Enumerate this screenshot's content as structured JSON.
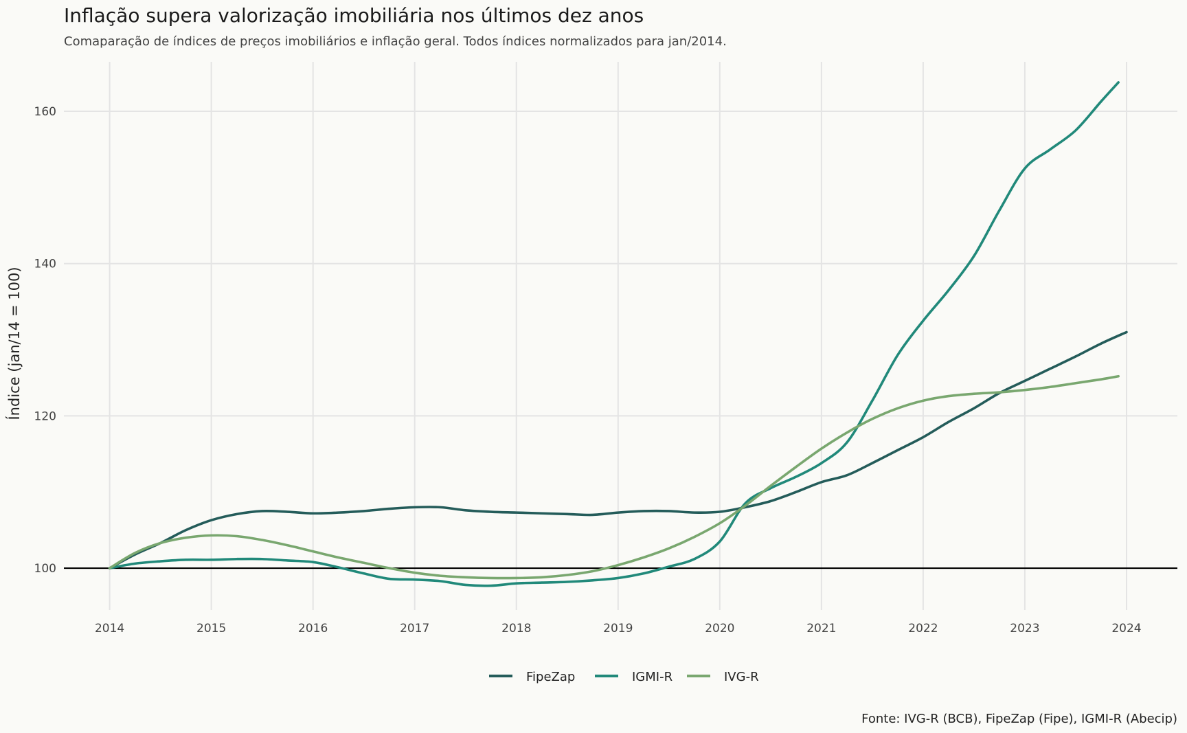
{
  "chart_data": {
    "type": "line",
    "title": "Inflação supera valorização imobiliária nos últimos dez anos",
    "subtitle": "Comaparação de índices de preços imobiliários e inflação geral. Todos índices normalizados para jan/2014.",
    "caption": "Fonte: IVG-R (BCB), FipeZap (Fipe), IGMI-R (Abecip)",
    "xlabel": "",
    "ylabel": "Índice (jan/14 = 100)",
    "xlim": [
      2013.55,
      2024.5
    ],
    "ylim": [
      94.5,
      166.5
    ],
    "x_ticks": [
      2014,
      2015,
      2016,
      2017,
      2018,
      2019,
      2020,
      2021,
      2022,
      2023,
      2024
    ],
    "x_tick_labels": [
      "2014",
      "2015",
      "2016",
      "2017",
      "2018",
      "2019",
      "2020",
      "2021",
      "2022",
      "2023",
      "2024"
    ],
    "y_ticks": [
      100,
      120,
      140,
      160
    ],
    "y_tick_labels": [
      "100",
      "120",
      "140",
      "160"
    ],
    "reference_line": 100,
    "grid": true,
    "legend_position": "bottom",
    "series": [
      {
        "name": "FipeZap",
        "color": "#245c5a",
        "points": [
          [
            2014.0,
            100.0
          ],
          [
            2014.25,
            101.8
          ],
          [
            2014.5,
            103.3
          ],
          [
            2014.75,
            105.0
          ],
          [
            2015.0,
            106.3
          ],
          [
            2015.25,
            107.1
          ],
          [
            2015.5,
            107.5
          ],
          [
            2015.75,
            107.4
          ],
          [
            2016.0,
            107.2
          ],
          [
            2016.25,
            107.3
          ],
          [
            2016.5,
            107.5
          ],
          [
            2016.75,
            107.8
          ],
          [
            2017.0,
            108.0
          ],
          [
            2017.25,
            108.0
          ],
          [
            2017.5,
            107.6
          ],
          [
            2017.75,
            107.4
          ],
          [
            2018.0,
            107.3
          ],
          [
            2018.25,
            107.2
          ],
          [
            2018.5,
            107.1
          ],
          [
            2018.75,
            107.0
          ],
          [
            2019.0,
            107.3
          ],
          [
            2019.25,
            107.5
          ],
          [
            2019.5,
            107.5
          ],
          [
            2019.75,
            107.3
          ],
          [
            2020.0,
            107.4
          ],
          [
            2020.25,
            108.0
          ],
          [
            2020.5,
            108.8
          ],
          [
            2020.75,
            110.0
          ],
          [
            2021.0,
            111.3
          ],
          [
            2021.25,
            112.2
          ],
          [
            2021.5,
            113.8
          ],
          [
            2021.75,
            115.5
          ],
          [
            2022.0,
            117.2
          ],
          [
            2022.25,
            119.2
          ],
          [
            2022.5,
            121.0
          ],
          [
            2022.75,
            123.0
          ],
          [
            2023.0,
            124.6
          ],
          [
            2023.25,
            126.2
          ],
          [
            2023.5,
            127.8
          ],
          [
            2023.75,
            129.5
          ],
          [
            2024.0,
            131.0
          ]
        ]
      },
      {
        "name": "IGMI-R",
        "color": "#21897a",
        "points": [
          [
            2014.0,
            100.0
          ],
          [
            2014.25,
            100.6
          ],
          [
            2014.5,
            100.9
          ],
          [
            2014.75,
            101.1
          ],
          [
            2015.0,
            101.1
          ],
          [
            2015.25,
            101.2
          ],
          [
            2015.5,
            101.2
          ],
          [
            2015.75,
            101.0
          ],
          [
            2016.0,
            100.8
          ],
          [
            2016.25,
            100.1
          ],
          [
            2016.5,
            99.3
          ],
          [
            2016.75,
            98.6
          ],
          [
            2017.0,
            98.5
          ],
          [
            2017.25,
            98.3
          ],
          [
            2017.5,
            97.8
          ],
          [
            2017.75,
            97.7
          ],
          [
            2018.0,
            98.0
          ],
          [
            2018.25,
            98.1
          ],
          [
            2018.5,
            98.2
          ],
          [
            2018.75,
            98.4
          ],
          [
            2019.0,
            98.7
          ],
          [
            2019.25,
            99.3
          ],
          [
            2019.5,
            100.2
          ],
          [
            2019.75,
            101.2
          ],
          [
            2020.0,
            103.5
          ],
          [
            2020.25,
            108.5
          ],
          [
            2020.5,
            110.5
          ],
          [
            2020.75,
            112.0
          ],
          [
            2021.0,
            113.8
          ],
          [
            2021.25,
            116.5
          ],
          [
            2021.5,
            122.0
          ],
          [
            2021.75,
            128.0
          ],
          [
            2022.0,
            132.5
          ],
          [
            2022.25,
            136.5
          ],
          [
            2022.5,
            141.0
          ],
          [
            2022.75,
            147.0
          ],
          [
            2023.0,
            152.5
          ],
          [
            2023.25,
            155.0
          ],
          [
            2023.5,
            157.5
          ],
          [
            2023.75,
            161.3
          ],
          [
            2023.92,
            163.8
          ]
        ]
      },
      {
        "name": "IVG-R",
        "color": "#79a76f",
        "points": [
          [
            2014.0,
            100.0
          ],
          [
            2014.25,
            102.0
          ],
          [
            2014.5,
            103.3
          ],
          [
            2014.75,
            104.0
          ],
          [
            2015.0,
            104.3
          ],
          [
            2015.25,
            104.2
          ],
          [
            2015.5,
            103.7
          ],
          [
            2015.75,
            103.0
          ],
          [
            2016.0,
            102.2
          ],
          [
            2016.25,
            101.4
          ],
          [
            2016.5,
            100.7
          ],
          [
            2016.75,
            100.0
          ],
          [
            2017.0,
            99.4
          ],
          [
            2017.25,
            99.0
          ],
          [
            2017.5,
            98.8
          ],
          [
            2017.75,
            98.7
          ],
          [
            2018.0,
            98.7
          ],
          [
            2018.25,
            98.8
          ],
          [
            2018.5,
            99.1
          ],
          [
            2018.75,
            99.6
          ],
          [
            2019.0,
            100.4
          ],
          [
            2019.25,
            101.4
          ],
          [
            2019.5,
            102.6
          ],
          [
            2019.75,
            104.1
          ],
          [
            2020.0,
            105.9
          ],
          [
            2020.25,
            108.2
          ],
          [
            2020.5,
            110.8
          ],
          [
            2020.75,
            113.3
          ],
          [
            2021.0,
            115.7
          ],
          [
            2021.25,
            117.8
          ],
          [
            2021.5,
            119.6
          ],
          [
            2021.75,
            121.0
          ],
          [
            2022.0,
            122.0
          ],
          [
            2022.25,
            122.6
          ],
          [
            2022.5,
            122.9
          ],
          [
            2022.75,
            123.1
          ],
          [
            2023.0,
            123.4
          ],
          [
            2023.25,
            123.8
          ],
          [
            2023.5,
            124.3
          ],
          [
            2023.75,
            124.8
          ],
          [
            2023.92,
            125.2
          ]
        ]
      }
    ]
  }
}
